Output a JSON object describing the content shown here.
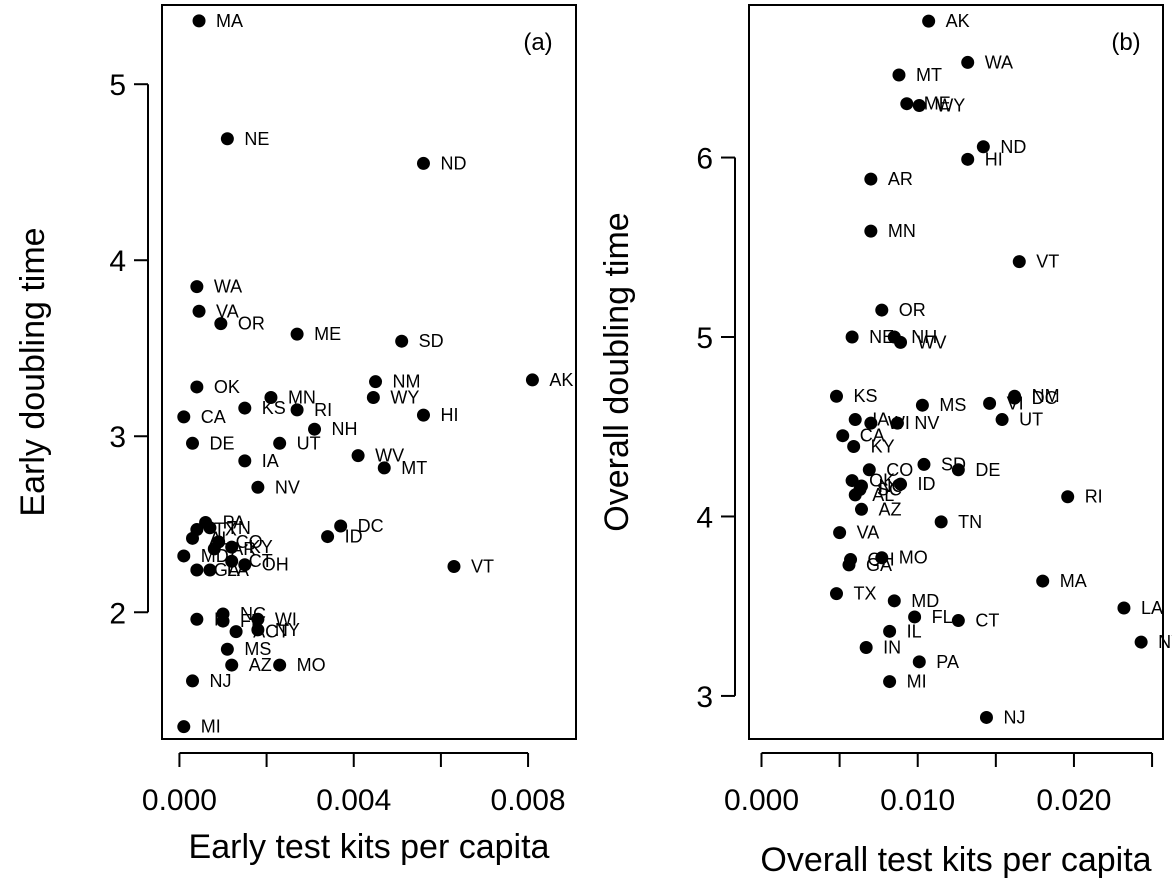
{
  "chart_data": [
    {
      "type": "scatter",
      "panel_label": "(a)",
      "xlabel": "Early test kits per capita",
      "ylabel": "Early doubling time",
      "xlim": [
        -0.0004,
        0.0091
      ],
      "ylim": [
        1.28,
        5.45
      ],
      "x_ticks": [
        0.0,
        0.004,
        0.008
      ],
      "x_tick_labels": [
        "0.000",
        "0.004",
        "0.008"
      ],
      "y_ticks": [
        2,
        3,
        4,
        5
      ],
      "y_tick_labels": [
        "2",
        "3",
        "4",
        "5"
      ],
      "grid": false,
      "points": [
        {
          "label": "MA",
          "x": 0.00045,
          "y": 5.36
        },
        {
          "label": "NE",
          "x": 0.0011,
          "y": 4.69
        },
        {
          "label": "ND",
          "x": 0.0056,
          "y": 4.55
        },
        {
          "label": "WA",
          "x": 0.0004,
          "y": 3.85
        },
        {
          "label": "VA",
          "x": 0.00045,
          "y": 3.71
        },
        {
          "label": "OR",
          "x": 0.00095,
          "y": 3.64
        },
        {
          "label": "ME",
          "x": 0.0027,
          "y": 3.58
        },
        {
          "label": "SD",
          "x": 0.0051,
          "y": 3.54
        },
        {
          "label": "NM",
          "x": 0.0045,
          "y": 3.31
        },
        {
          "label": "AK",
          "x": 0.0081,
          "y": 3.32
        },
        {
          "label": "OK",
          "x": 0.0004,
          "y": 3.28
        },
        {
          "label": "MN",
          "x": 0.0021,
          "y": 3.22
        },
        {
          "label": "WY",
          "x": 0.00445,
          "y": 3.22
        },
        {
          "label": "KS",
          "x": 0.0015,
          "y": 3.16
        },
        {
          "label": "RI",
          "x": 0.0027,
          "y": 3.15
        },
        {
          "label": "CA",
          "x": 0.0001,
          "y": 3.11
        },
        {
          "label": "HI",
          "x": 0.0056,
          "y": 3.12
        },
        {
          "label": "NH",
          "x": 0.0031,
          "y": 3.04
        },
        {
          "label": "DE",
          "x": 0.0003,
          "y": 2.96
        },
        {
          "label": "UT",
          "x": 0.0023,
          "y": 2.96
        },
        {
          "label": "WV",
          "x": 0.0041,
          "y": 2.89
        },
        {
          "label": "IA",
          "x": 0.0015,
          "y": 2.86
        },
        {
          "label": "MT",
          "x": 0.0047,
          "y": 2.82
        },
        {
          "label": "NV",
          "x": 0.0018,
          "y": 2.71
        },
        {
          "label": "PA",
          "x": 0.0006,
          "y": 2.51
        },
        {
          "label": "TN",
          "x": 0.0007,
          "y": 2.48
        },
        {
          "label": "DC",
          "x": 0.0037,
          "y": 2.49
        },
        {
          "label": "TX",
          "x": 0.0004,
          "y": 2.47
        },
        {
          "label": "ID",
          "x": 0.0034,
          "y": 2.43
        },
        {
          "label": "AL",
          "x": 0.0003,
          "y": 2.42
        },
        {
          "label": "CO",
          "x": 0.0009,
          "y": 2.4
        },
        {
          "label": "KY",
          "x": 0.0012,
          "y": 2.37
        },
        {
          "label": "AR",
          "x": 0.0008,
          "y": 2.36
        },
        {
          "label": "MD",
          "x": 0.0001,
          "y": 2.32
        },
        {
          "label": "CT",
          "x": 0.0012,
          "y": 2.29
        },
        {
          "label": "OH",
          "x": 0.0015,
          "y": 2.27
        },
        {
          "label": "GA",
          "x": 0.0004,
          "y": 2.24
        },
        {
          "label": "LA",
          "x": 0.0007,
          "y": 2.24
        },
        {
          "label": "VT",
          "x": 0.0063,
          "y": 2.26
        },
        {
          "label": "NC",
          "x": 0.001,
          "y": 1.99
        },
        {
          "label": "IL",
          "x": 0.0004,
          "y": 1.96
        },
        {
          "label": "FL",
          "x": 0.001,
          "y": 1.95
        },
        {
          "label": "WI",
          "x": 0.0018,
          "y": 1.96
        },
        {
          "label": "ACT",
          "x": 0.0013,
          "y": 1.89
        },
        {
          "label": "NY",
          "x": 0.0018,
          "y": 1.9
        },
        {
          "label": "MS",
          "x": 0.0011,
          "y": 1.79
        },
        {
          "label": "AZ",
          "x": 0.0012,
          "y": 1.7
        },
        {
          "label": "MO",
          "x": 0.0023,
          "y": 1.7
        },
        {
          "label": "NJ",
          "x": 0.0003,
          "y": 1.61
        },
        {
          "label": "MI",
          "x": 0.0001,
          "y": 1.35
        }
      ]
    },
    {
      "type": "scatter",
      "panel_label": "(b)",
      "xlabel": "Overall test kits per capita",
      "ylabel": "Overall doubling time",
      "xlim": [
        -0.0008,
        0.0257
      ],
      "ylim": [
        2.76,
        6.85
      ],
      "x_ticks": [
        0.0,
        0.01,
        0.02
      ],
      "x_tick_labels": [
        "0.000",
        "0.010",
        "0.020"
      ],
      "y_ticks": [
        3,
        4,
        5,
        6
      ],
      "y_tick_labels": [
        "3",
        "4",
        "5",
        "6"
      ],
      "grid": false,
      "points": [
        {
          "label": "AK",
          "x": 0.0107,
          "y": 6.76
        },
        {
          "label": "WA",
          "x": 0.0132,
          "y": 6.53
        },
        {
          "label": "MT",
          "x": 0.0088,
          "y": 6.46
        },
        {
          "label": "ME",
          "x": 0.0093,
          "y": 6.3
        },
        {
          "label": "WY",
          "x": 0.0101,
          "y": 6.29
        },
        {
          "label": "ND",
          "x": 0.0142,
          "y": 6.06
        },
        {
          "label": "HI",
          "x": 0.0132,
          "y": 5.99
        },
        {
          "label": "AR",
          "x": 0.007,
          "y": 5.88
        },
        {
          "label": "MN",
          "x": 0.007,
          "y": 5.59
        },
        {
          "label": "VT",
          "x": 0.0165,
          "y": 5.42
        },
        {
          "label": "OR",
          "x": 0.0077,
          "y": 5.15
        },
        {
          "label": "NE",
          "x": 0.0058,
          "y": 5.0
        },
        {
          "label": "NH",
          "x": 0.0085,
          "y": 5.0
        },
        {
          "label": "WV",
          "x": 0.0089,
          "y": 4.97
        },
        {
          "label": "KS",
          "x": 0.0048,
          "y": 4.67
        },
        {
          "label": "NM",
          "x": 0.0162,
          "y": 4.67
        },
        {
          "label": "DC",
          "x": 0.0162,
          "y": 4.66
        },
        {
          "label": "MS",
          "x": 0.0103,
          "y": 4.62
        },
        {
          "label": "VI",
          "x": 0.0146,
          "y": 4.63
        },
        {
          "label": "IA",
          "x": 0.006,
          "y": 4.54
        },
        {
          "label": "WI",
          "x": 0.007,
          "y": 4.52
        },
        {
          "label": "NV",
          "x": 0.0087,
          "y": 4.52
        },
        {
          "label": "UT",
          "x": 0.0154,
          "y": 4.54
        },
        {
          "label": "CA",
          "x": 0.0052,
          "y": 4.45
        },
        {
          "label": "KY",
          "x": 0.0059,
          "y": 4.39
        },
        {
          "label": "CO",
          "x": 0.0069,
          "y": 4.26
        },
        {
          "label": "SD",
          "x": 0.0104,
          "y": 4.29
        },
        {
          "label": "DE",
          "x": 0.0126,
          "y": 4.26
        },
        {
          "label": "OK",
          "x": 0.0058,
          "y": 4.2
        },
        {
          "label": "NC",
          "x": 0.0064,
          "y": 4.17
        },
        {
          "label": "ID",
          "x": 0.0089,
          "y": 4.18
        },
        {
          "label": "SC",
          "x": 0.0063,
          "y": 4.15
        },
        {
          "label": "AL",
          "x": 0.006,
          "y": 4.12
        },
        {
          "label": "RI",
          "x": 0.0196,
          "y": 4.11
        },
        {
          "label": "AZ",
          "x": 0.0064,
          "y": 4.04
        },
        {
          "label": "TN",
          "x": 0.0115,
          "y": 3.97
        },
        {
          "label": "VA",
          "x": 0.005,
          "y": 3.91
        },
        {
          "label": "OH",
          "x": 0.0057,
          "y": 3.76
        },
        {
          "label": "MO",
          "x": 0.0077,
          "y": 3.77
        },
        {
          "label": "GA",
          "x": 0.0056,
          "y": 3.73
        },
        {
          "label": "MA",
          "x": 0.018,
          "y": 3.64
        },
        {
          "label": "TX",
          "x": 0.0048,
          "y": 3.57
        },
        {
          "label": "MD",
          "x": 0.0085,
          "y": 3.53
        },
        {
          "label": "LA",
          "x": 0.0232,
          "y": 3.49
        },
        {
          "label": "FL",
          "x": 0.0098,
          "y": 3.44
        },
        {
          "label": "CT",
          "x": 0.0126,
          "y": 3.42
        },
        {
          "label": "IL",
          "x": 0.0082,
          "y": 3.36
        },
        {
          "label": "NY",
          "x": 0.0243,
          "y": 3.3
        },
        {
          "label": "IN",
          "x": 0.0067,
          "y": 3.27
        },
        {
          "label": "PA",
          "x": 0.0101,
          "y": 3.19
        },
        {
          "label": "MI",
          "x": 0.0082,
          "y": 3.08
        },
        {
          "label": "NJ",
          "x": 0.0144,
          "y": 2.88
        }
      ]
    }
  ]
}
